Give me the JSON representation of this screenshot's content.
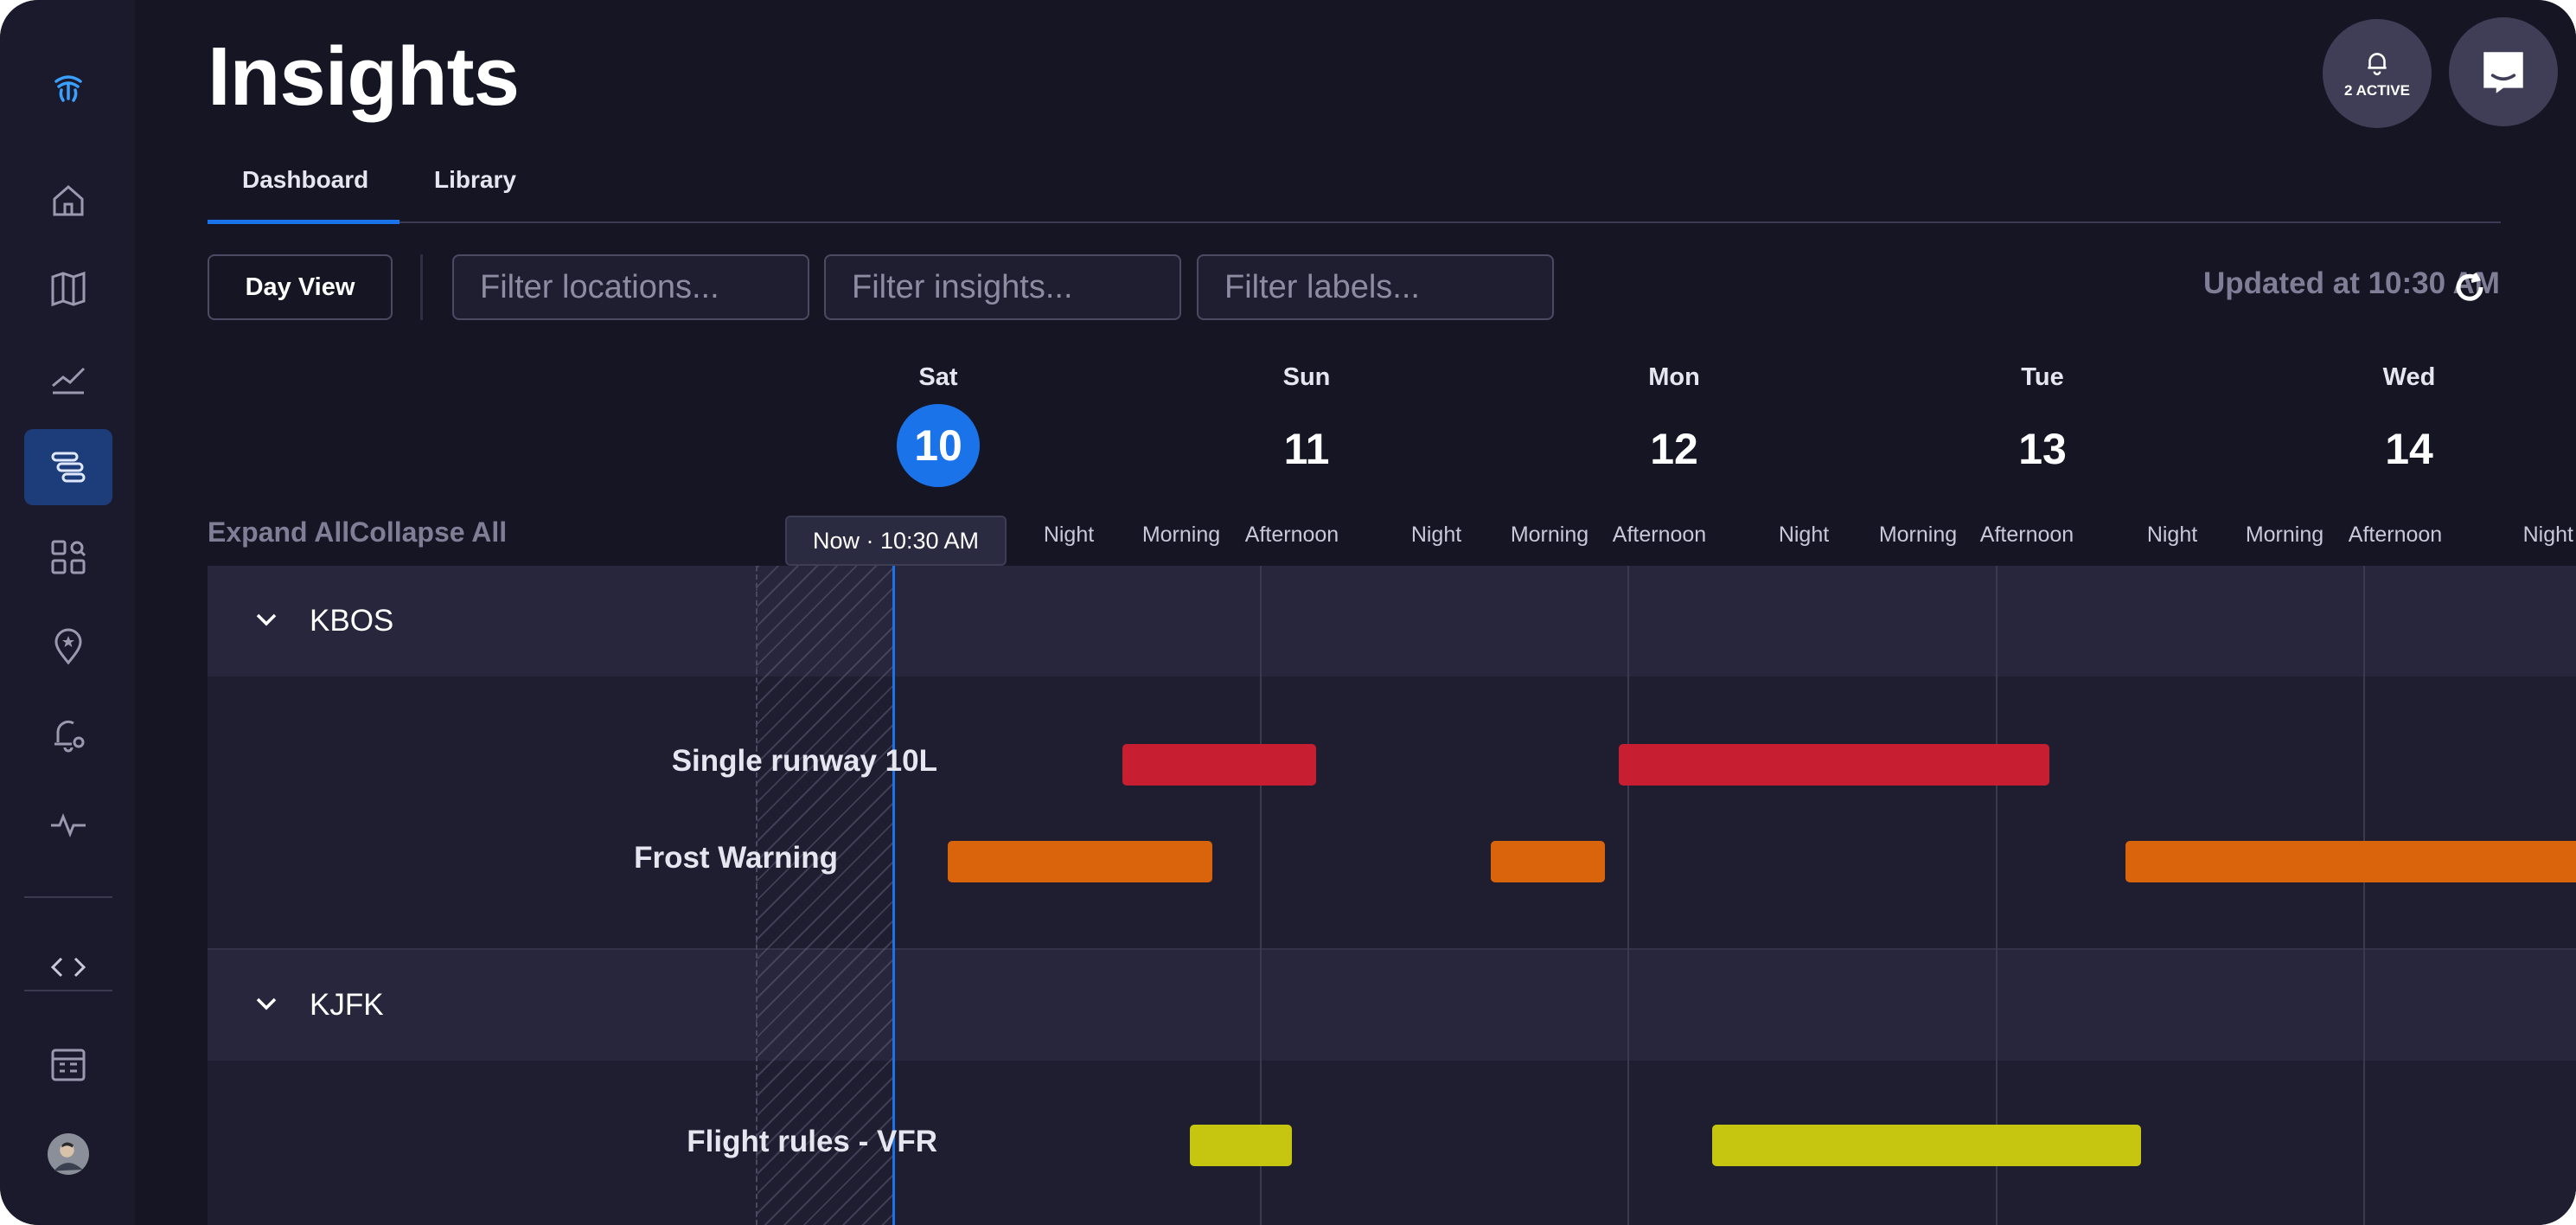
{
  "header": {
    "title": "Insights",
    "alerts_label": "2 ACTIVE"
  },
  "tabs": [
    {
      "label": "Dashboard",
      "active": true
    },
    {
      "label": "Library",
      "active": false
    }
  ],
  "toolbar": {
    "day_view_label": "Day View",
    "filter_locations_placeholder": "Filter locations...",
    "filter_insights_placeholder": "Filter insights...",
    "filter_labels_placeholder": "Filter labels...",
    "updated_text": "Updated at 10:30 AM"
  },
  "timeline": {
    "expand_label": "Expand All",
    "collapse_label": "Collapse All",
    "now_label": "Now · 10:30 AM",
    "days": [
      {
        "name": "Sat",
        "num": "10",
        "today": true
      },
      {
        "name": "Sun",
        "num": "11",
        "today": false
      },
      {
        "name": "Mon",
        "num": "12",
        "today": false
      },
      {
        "name": "Tue",
        "num": "13",
        "today": false
      },
      {
        "name": "Wed",
        "num": "14",
        "today": false
      }
    ],
    "periods": [
      "Night",
      "Morning",
      "Afternoon",
      "Night",
      "Morning",
      "Afternoon",
      "Night",
      "Morning",
      "Afternoon",
      "Night",
      "Morning",
      "Afternoon",
      "Night"
    ]
  },
  "groups": [
    {
      "name": "KBOS",
      "rows": [
        {
          "label": "Single runway 10L",
          "color": "#c81e32"
        },
        {
          "label": "Frost Warning",
          "color": "#d9640c"
        }
      ]
    },
    {
      "name": "KJFK",
      "rows": [
        {
          "label": "Flight rules - VFR",
          "color": "#c6c50f"
        }
      ]
    }
  ],
  "colors": {
    "accent": "#1a73e8",
    "background": "#161524",
    "sidebar_active": "#1c3d7a"
  },
  "sidebar": {
    "icons": [
      "logo-icon",
      "home-icon",
      "map-icon",
      "trend-icon",
      "timeline-icon",
      "grid-search-icon",
      "location-star-icon",
      "bell-settings-icon",
      "pulse-icon",
      "code-icon",
      "calendar-icon",
      "avatar"
    ]
  }
}
